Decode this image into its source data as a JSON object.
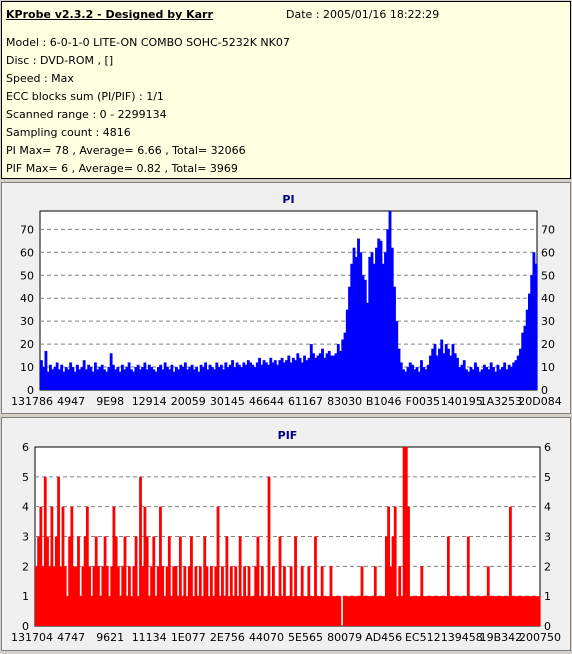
{
  "header": {
    "title": "KProbe v2.3.2 - Designed by Karr",
    "date": "Date : 2005/01/16 18:22:29"
  },
  "info": {
    "model": "Model : 6-0-1-0 LITE-ON COMBO SOHC-5232K NK07",
    "disc": "Disc : DVD-ROM ,  []",
    "speed": "Speed : Max",
    "ecc": "ECC blocks sum (PI/PIF) : 1/1",
    "range": "Scanned range : 0 - 2299134",
    "sampling": "Sampling count : 4816",
    "pi": "PI Max= 78 , Average= 6.66 , Total= 32066",
    "pif": "PIF Max= 6 , Average= 0.82 , Total= 3969"
  },
  "colors": {
    "pi": "#0000ff",
    "pif": "#ff0000",
    "grid": "#808080",
    "title": "#000080"
  },
  "chart_data": [
    {
      "type": "area",
      "title": "PI",
      "ylim": [
        0,
        78
      ],
      "yticks": [
        0,
        10,
        20,
        30,
        40,
        50,
        60,
        70
      ],
      "xtick_labels": [
        "131786",
        "4947",
        "9E98",
        "12914",
        "20059",
        "30145",
        "46644",
        "61167",
        "83030",
        "B1046",
        "F0035",
        "140195",
        "1A3253",
        "20D084"
      ],
      "grid": true,
      "series": [
        {
          "values": [
            13,
            10,
            17,
            8,
            11,
            9,
            10,
            12,
            9,
            11,
            8,
            10,
            9,
            12,
            10,
            8,
            11,
            9,
            10,
            13,
            9,
            11,
            10,
            8,
            12,
            9,
            10,
            11,
            9,
            8,
            10,
            16,
            11,
            9,
            10,
            8,
            11,
            9,
            10,
            12,
            9,
            8,
            10,
            11,
            9,
            10,
            12,
            9,
            11,
            10,
            9,
            8,
            10,
            11,
            9,
            12,
            10,
            9,
            11,
            8,
            10,
            9,
            11,
            10,
            12,
            9,
            10,
            11,
            9,
            10,
            8,
            11,
            10,
            12,
            9,
            11,
            10,
            9,
            12,
            10,
            11,
            9,
            12,
            10,
            11,
            13,
            10,
            12,
            11,
            10,
            12,
            11,
            13,
            12,
            11,
            10,
            12,
            14,
            11,
            13,
            12,
            11,
            14,
            12,
            13,
            11,
            13,
            14,
            12,
            13,
            15,
            12,
            14,
            13,
            16,
            14,
            12,
            15,
            13,
            14,
            20,
            16,
            14,
            15,
            16,
            18,
            14,
            16,
            17,
            15,
            15,
            16,
            20,
            17,
            22,
            25,
            35,
            45,
            55,
            62,
            58,
            66,
            60,
            50,
            48,
            38,
            58,
            60,
            55,
            62,
            66,
            65,
            55,
            60,
            70,
            78,
            62,
            45,
            30,
            18,
            12,
            9,
            8,
            10,
            12,
            11,
            9,
            10,
            8,
            13,
            10,
            9,
            11,
            15,
            18,
            20,
            15,
            18,
            22,
            16,
            20,
            18,
            15,
            20,
            16,
            14,
            10,
            11,
            13,
            9,
            8,
            10,
            9,
            12,
            10,
            8,
            9,
            11,
            10,
            9,
            12,
            10,
            8,
            11,
            9,
            10,
            12,
            9,
            11,
            10,
            12,
            13,
            15,
            18,
            25,
            28,
            35,
            42,
            50,
            60,
            55
          ]
        }
      ]
    },
    {
      "type": "bar",
      "title": "PIF",
      "ylim": [
        0,
        6
      ],
      "yticks": [
        0,
        1,
        2,
        3,
        4,
        5,
        6
      ],
      "xtick_labels": [
        "131704",
        "4747",
        "9621",
        "11134",
        "1E077",
        "2E756",
        "44070",
        "5E565",
        "80079",
        "AD456",
        "EC512",
        "139458",
        "19B342",
        "200750"
      ],
      "grid": true,
      "series": [
        {
          "values": [
            2,
            3,
            4,
            2,
            5,
            3,
            2,
            4,
            2,
            3,
            5,
            2,
            4,
            2,
            1,
            3,
            4,
            2,
            2,
            3,
            1,
            2,
            3,
            4,
            2,
            1,
            2,
            3,
            2,
            1,
            2,
            3,
            2,
            1,
            2,
            4,
            3,
            2,
            1,
            2,
            3,
            1,
            2,
            1,
            2,
            3,
            1,
            5,
            2,
            4,
            3,
            1,
            2,
            3,
            1,
            2,
            4,
            2,
            1,
            2,
            3,
            1,
            2,
            2,
            1,
            3,
            1,
            2,
            1,
            2,
            3,
            1,
            2,
            1,
            2,
            1,
            3,
            2,
            1,
            2,
            1,
            2,
            4,
            1,
            2,
            1,
            3,
            1,
            2,
            1,
            2,
            1,
            3,
            1,
            2,
            1,
            2,
            1,
            1,
            2,
            3,
            1,
            2,
            1,
            1,
            5,
            1,
            2,
            1,
            1,
            3,
            1,
            2,
            1,
            1,
            2,
            1,
            3,
            1,
            1,
            2,
            1,
            1,
            2,
            1,
            1,
            3,
            1,
            1,
            2,
            1,
            1,
            1,
            2,
            1,
            1,
            1,
            1,
            0,
            1,
            1,
            1,
            1,
            1,
            1,
            1,
            1,
            2,
            1,
            1,
            1,
            1,
            1,
            2,
            1,
            1,
            1,
            1,
            3,
            4,
            2,
            3,
            4,
            1,
            2,
            1,
            6,
            6,
            4,
            1,
            1,
            1,
            1,
            1,
            2,
            1,
            1,
            1,
            1,
            1,
            1,
            1,
            1,
            1,
            1,
            1,
            3,
            1,
            1,
            1,
            1,
            1,
            1,
            1,
            1,
            3,
            1,
            1,
            1,
            1,
            1,
            1,
            1,
            1,
            2,
            1,
            1,
            1,
            1,
            1,
            1,
            1,
            1,
            1,
            4,
            1,
            1,
            1,
            1,
            1,
            1,
            1,
            1,
            1,
            1,
            1,
            1,
            1
          ]
        }
      ]
    }
  ]
}
